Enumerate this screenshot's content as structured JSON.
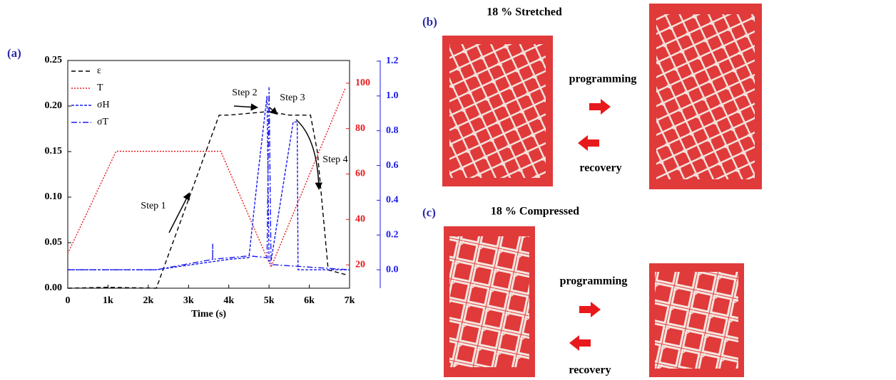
{
  "chart_data": {
    "type": "line",
    "x_label": "Time (s)",
    "xlim": [
      0,
      7000
    ],
    "xticks": [
      0,
      {
        "value": 1000,
        "label": "1k"
      },
      {
        "value": 2000,
        "label": "2k"
      },
      {
        "value": 3000,
        "label": "3k"
      },
      {
        "value": 4000,
        "label": "4k"
      },
      {
        "value": 5000,
        "label": "5k"
      },
      {
        "value": 6000,
        "label": "6k"
      },
      {
        "value": 7000,
        "label": "7k"
      }
    ],
    "ylim": [
      0,
      0.25
    ],
    "yticks": [
      {
        "value": 0,
        "label": "0.00"
      },
      0.05,
      {
        "value": 0.1,
        "label": "0.10"
      },
      0.15,
      {
        "value": 0.2,
        "label": "0.20"
      },
      0.25
    ],
    "y2lim": [
      9.7,
      110
    ],
    "y2ticks": [
      20,
      40,
      60,
      80,
      100
    ],
    "y2color": "#e8191c",
    "y3lim": [
      -0.106,
      1.204
    ],
    "y3ticks": [
      {
        "value": 0,
        "label": "0.0"
      },
      0.2,
      0.4,
      0.6,
      0.8,
      {
        "value": 1,
        "label": "1.0"
      },
      1.2
    ],
    "y3color": "#1a1aee",
    "series": [
      {
        "name": "ε",
        "color": "#000000",
        "dash": "6,4",
        "x": [
          0,
          1000,
          2200,
          3760,
          4000,
          4500,
          5000,
          5500,
          6030,
          6200,
          6470,
          6900
        ],
        "values": [
          0,
          0.001,
          0,
          0.19,
          0.19,
          0.192,
          0.194,
          0.19,
          0.19,
          0.15,
          0.02,
          0.015
        ]
      },
      {
        "name": "T",
        "color": "#e8191c",
        "dash": "2,2",
        "axis": "y2",
        "x": [
          0,
          1200,
          3800,
          5050,
          6900
        ],
        "values": [
          25,
          70,
          70,
          19,
          98
        ]
      },
      {
        "name": "σH",
        "color": "#1a1aee",
        "dash": "4,2",
        "axis": "y3",
        "x": [
          0,
          2200,
          4000,
          4500,
          4700,
          4950,
          5000,
          5050,
          5600,
          5700,
          5720,
          7000
        ],
        "values": [
          0,
          0,
          0.06,
          0.07,
          0.5,
          1.0,
          0.05,
          0.05,
          0.85,
          0.85,
          0,
          0
        ]
      },
      {
        "name": "σT",
        "color": "#1a1aee",
        "dash": "8,3,2,3",
        "axis": "y3",
        "x": [
          0,
          2200,
          3600,
          3600,
          3600,
          4500,
          4950,
          5000,
          5050,
          7000
        ],
        "values": [
          0,
          0,
          0.06,
          0.15,
          0.06,
          0.08,
          0.07,
          1.05,
          0.03,
          0
        ]
      }
    ],
    "annotations": [
      "Step 1",
      "Step 2",
      "Step 3",
      "Step 4"
    ]
  },
  "panels": {
    "a": "(a)",
    "b": {
      "label": "(b)",
      "title": "18 %  Stretched",
      "forward": "programming",
      "backward": "recovery"
    },
    "c": {
      "label": "(c)",
      "title": "18 %  Compressed",
      "forward": "programming",
      "backward": "recovery"
    }
  }
}
